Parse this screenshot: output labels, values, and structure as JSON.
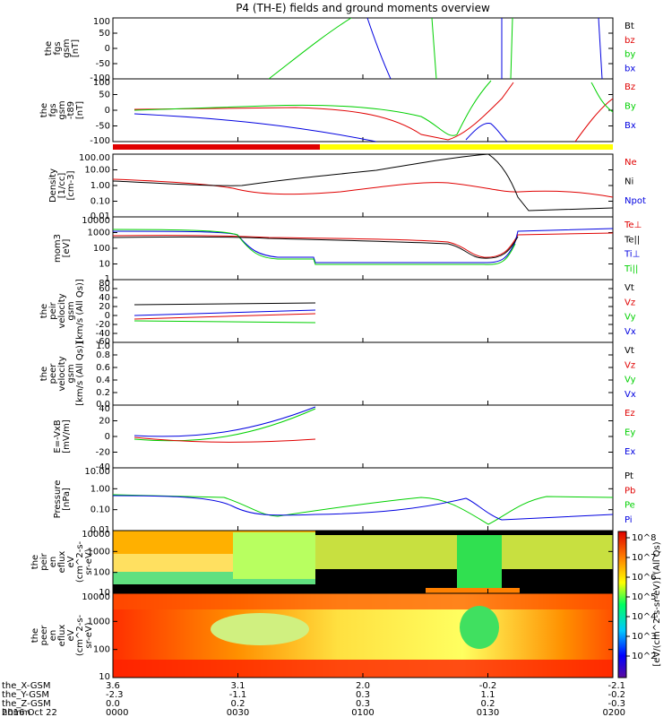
{
  "title": "P4 (TH-E) fields and ground moments overview",
  "date_label": "2016 Oct 22",
  "colors": {
    "black": "#000000",
    "red": "#e00000",
    "green": "#00d000",
    "blue": "#0000e0",
    "yellow": "#ffff00"
  },
  "chart_data": [
    {
      "id": "fgs",
      "type": "line",
      "ylabel_lines": [
        "the",
        "fgs",
        "gsm",
        "[nT]"
      ],
      "yticks": [
        "100",
        "50",
        "0",
        "-50",
        "-100"
      ],
      "ylim": [
        -100,
        100
      ],
      "legend": [
        {
          "label": "Bt",
          "color": "#000000"
        },
        {
          "label": "bz",
          "color": "#e00000"
        },
        {
          "label": "by",
          "color": "#00d000"
        },
        {
          "label": "bx",
          "color": "#0000e0"
        }
      ]
    },
    {
      "id": "fgs_minus_t89",
      "type": "line",
      "ylabel_lines": [
        "the",
        "fgs",
        "gsm",
        "-t89",
        "[nT]"
      ],
      "yticks": [
        "100",
        "50",
        "0",
        "-50",
        "-100"
      ],
      "ylim": [
        -120,
        100
      ],
      "legend": [
        {
          "label": "Bz",
          "color": "#e00000"
        },
        {
          "label": "By",
          "color": "#00d000"
        },
        {
          "label": "Bx",
          "color": "#0000e0"
        }
      ]
    },
    {
      "id": "density",
      "type": "line",
      "log": true,
      "ylabel_lines": [
        "Density",
        "[1/cc]",
        "[cm-3]"
      ],
      "yticks": [
        "100.00",
        "10.00",
        "1.00",
        "0.10",
        "0.01"
      ],
      "legend": [
        {
          "label": "Ne",
          "color": "#e00000"
        },
        {
          "label": "Ni",
          "color": "#000000"
        },
        {
          "label": "Npot",
          "color": "#0000e0"
        }
      ]
    },
    {
      "id": "temperature",
      "type": "line",
      "log": true,
      "ylabel_lines": [
        "mom3",
        "[eV]"
      ],
      "yticks": [
        "10000",
        "1000",
        "100",
        "10",
        "1"
      ],
      "legend": [
        {
          "label": "Te⊥",
          "color": "#e00000"
        },
        {
          "label": "Te||",
          "color": "#000000"
        },
        {
          "label": "Ti⊥",
          "color": "#0000e0"
        },
        {
          "label": "Ti||",
          "color": "#00d000"
        }
      ]
    },
    {
      "id": "peir_velocity",
      "type": "line",
      "ylabel_lines": [
        "the",
        "peir",
        "velocity",
        "gsm",
        "[km/s (All Qs)]"
      ],
      "yticks": [
        "80",
        "60",
        "40",
        "20",
        "0",
        "-20",
        "-40",
        "-60"
      ],
      "ylim": [
        -60,
        80
      ],
      "legend": [
        {
          "label": "Vt",
          "color": "#000000"
        },
        {
          "label": "Vz",
          "color": "#e00000"
        },
        {
          "label": "Vy",
          "color": "#00d000"
        },
        {
          "label": "Vx",
          "color": "#0000e0"
        }
      ]
    },
    {
      "id": "peer_velocity",
      "type": "line",
      "ylabel_lines": [
        "the",
        "peer",
        "velocity",
        "gsm",
        "[km/s (All Qs)]"
      ],
      "yticks": [
        "1.0",
        "0.8",
        "0.6",
        "0.4",
        "0.2",
        "0.0"
      ],
      "ylim": [
        0,
        1
      ],
      "legend": [
        {
          "label": "Vt",
          "color": "#000000"
        },
        {
          "label": "Vz",
          "color": "#e00000"
        },
        {
          "label": "Vy",
          "color": "#00d000"
        },
        {
          "label": "Vx",
          "color": "#0000e0"
        }
      ]
    },
    {
      "id": "efield",
      "type": "line",
      "ylabel_lines": [
        "E=-VxB",
        "[mV/m]"
      ],
      "yticks": [
        "40",
        "20",
        "0",
        "-20",
        "-40"
      ],
      "ylim": [
        -40,
        40
      ],
      "legend": [
        {
          "label": "Ez",
          "color": "#e00000"
        },
        {
          "label": "Ey",
          "color": "#00d000"
        },
        {
          "label": "Ex",
          "color": "#0000e0"
        }
      ]
    },
    {
      "id": "pressure",
      "type": "line",
      "log": true,
      "ylabel_lines": [
        "Pressure",
        "[nPa]"
      ],
      "yticks": [
        "10.00",
        "1.00",
        "0.10",
        "0.01"
      ],
      "legend": [
        {
          "label": "Pt",
          "color": "#000000"
        },
        {
          "label": "Pb",
          "color": "#e00000"
        },
        {
          "label": "Pe",
          "color": "#00d000"
        },
        {
          "label": "Pi",
          "color": "#0000e0"
        }
      ]
    },
    {
      "id": "peir_eflux",
      "type": "heatmap",
      "ylabel_lines": [
        "the",
        "peir",
        "en",
        "eflux",
        "eV",
        "(cm^2-s-",
        "sr-eV)"
      ],
      "yticks": [
        "10000",
        "1000",
        "100",
        "10"
      ]
    },
    {
      "id": "peer_eflux",
      "type": "heatmap",
      "ylabel_lines": [
        "the",
        "peer",
        "en",
        "eflux",
        "eV",
        "(cm^2-s-",
        "sr-eV)"
      ],
      "yticks": [
        "10000",
        "1000",
        "100",
        "10"
      ]
    }
  ],
  "colorbar": {
    "ticks": [
      "10^8",
      "10^7",
      "10^6",
      "10^5",
      "10^4",
      "10^3",
      "10^2"
    ],
    "label": "[eV/(cm^2-s-sr-eV)] (All Qs)"
  },
  "footer": {
    "row_labels": [
      "the_X-GSM",
      "the_Y-GSM",
      "the_Z-GSM",
      "hhmm"
    ],
    "columns": [
      {
        "x": "3.6",
        "y": "-2.3",
        "z": "0.0",
        "t": "0000"
      },
      {
        "x": "3.1",
        "y": "-1.1",
        "z": "0.2",
        "t": "0030"
      },
      {
        "x": "2.0",
        "y": "0.3",
        "z": "0.3",
        "t": "0100"
      },
      {
        "x": "-0.2",
        "y": "1.1",
        "z": "0.2",
        "t": "0130"
      },
      {
        "x": "-2.1",
        "y": "-0.2",
        "z": "-0.3",
        "t": "0200"
      }
    ]
  }
}
